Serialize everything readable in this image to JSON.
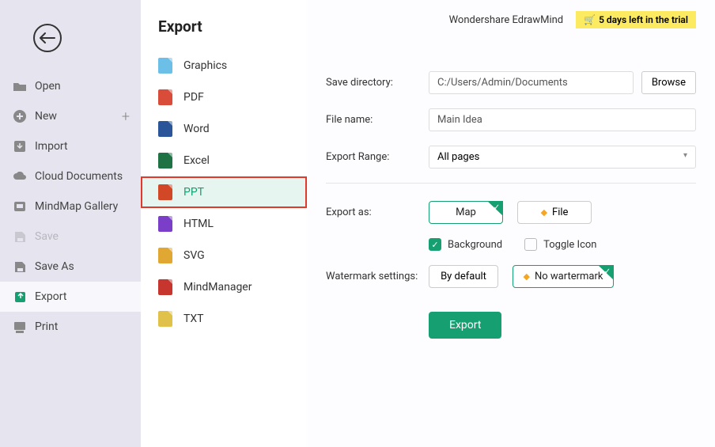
{
  "header": {
    "app_name": "Wondershare EdrawMind",
    "trial_text": "5 days left in the trial"
  },
  "sidebar": {
    "items": [
      {
        "label": "Open"
      },
      {
        "label": "New",
        "has_plus": true
      },
      {
        "label": "Import"
      },
      {
        "label": "Cloud Documents"
      },
      {
        "label": "MindMap Gallery"
      },
      {
        "label": "Save",
        "disabled": true
      },
      {
        "label": "Save As"
      },
      {
        "label": "Export",
        "selected": true
      },
      {
        "label": "Print"
      }
    ]
  },
  "export_col": {
    "title": "Export",
    "formats": [
      {
        "label": "Graphics",
        "color": "#6cbfe6"
      },
      {
        "label": "PDF",
        "color": "#d94c3a"
      },
      {
        "label": "Word",
        "color": "#2a5699"
      },
      {
        "label": "Excel",
        "color": "#1f7244"
      },
      {
        "label": "PPT",
        "color": "#d24726",
        "highlighted": true
      },
      {
        "label": "HTML",
        "color": "#7b3ec9"
      },
      {
        "label": "SVG",
        "color": "#e0a733"
      },
      {
        "label": "MindManager",
        "color": "#c6362f"
      },
      {
        "label": "TXT",
        "color": "#e0c24a"
      }
    ]
  },
  "form": {
    "save_dir_label": "Save directory:",
    "save_dir_value": "C:/Users/Admin/Documents",
    "browse_label": "Browse",
    "file_name_label": "File name:",
    "file_name_value": "Main Idea",
    "range_label": "Export Range:",
    "range_value": "All pages",
    "export_as_label": "Export as:",
    "map_label": "Map",
    "file_label": "File",
    "background_label": "Background",
    "toggle_icon_label": "Toggle Icon",
    "wm_label": "Watermark settings:",
    "wm_default": "By default",
    "wm_none": "No wartermark",
    "export_btn": "Export"
  }
}
